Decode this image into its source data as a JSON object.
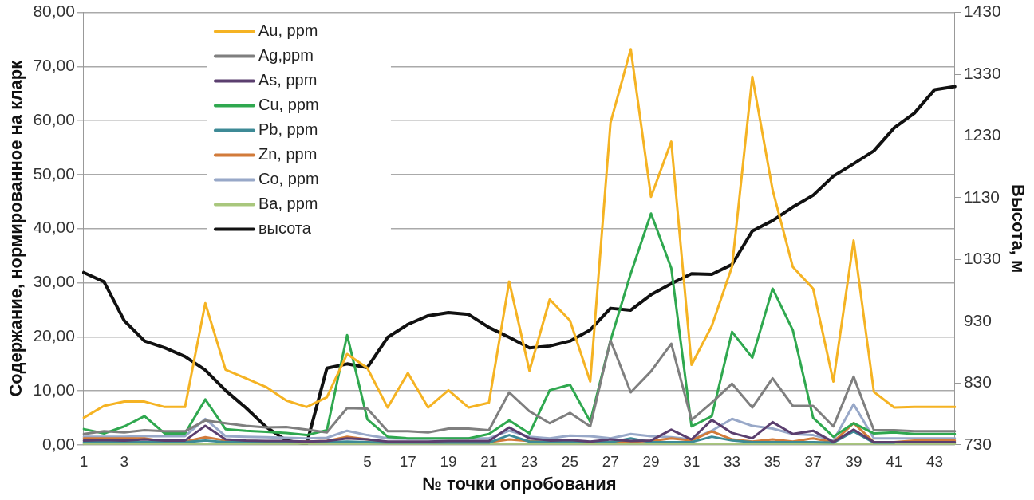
{
  "chart_data": {
    "type": "line",
    "xlabel": "№ точки опробования",
    "ylabel": "Содержание, нормированное на кларк",
    "y2label": "Высота, м",
    "categories": [
      "1",
      null,
      "3",
      null,
      null,
      null,
      null,
      null,
      null,
      null,
      null,
      null,
      null,
      null,
      "5",
      null,
      "17",
      null,
      "19",
      null,
      "21",
      null,
      "23",
      null,
      "25",
      null,
      "27",
      null,
      "29",
      null,
      "31",
      null,
      "33",
      null,
      "35",
      null,
      "37",
      null,
      "39",
      null,
      "41",
      null,
      "43",
      null
    ],
    "ylim": [
      0,
      80
    ],
    "yticks": [
      {
        "value": 0,
        "label": "0,00"
      },
      {
        "value": 10,
        "label": "10,00"
      },
      {
        "value": 20,
        "label": "20,00"
      },
      {
        "value": 30,
        "label": "30,00"
      },
      {
        "value": 40,
        "label": "40,00"
      },
      {
        "value": 50,
        "label": "50,00"
      },
      {
        "value": 60,
        "label": "60,00"
      },
      {
        "value": 70,
        "label": "70,00"
      },
      {
        "value": 80,
        "label": "80,00"
      }
    ],
    "y2lim": [
      730,
      1430
    ],
    "y2ticks": [
      730,
      830,
      930,
      1030,
      1130,
      1230,
      1330,
      1430
    ],
    "grid": "y",
    "legend": "top left",
    "marker": "none",
    "line_style": "solid",
    "series": [
      {
        "name": "Au, ppm",
        "color": "#f5b323",
        "values": [
          5,
          7.2,
          8,
          8,
          7,
          7,
          26.2,
          13.9,
          12.3,
          10.7,
          8.2,
          7,
          8.8,
          16.8,
          14.2,
          6.9,
          13.3,
          6.9,
          10.1,
          6.9,
          7.8,
          30.2,
          13.7,
          26.9,
          23,
          11.7,
          59.6,
          73.2,
          45.9,
          56.1,
          14.8,
          22,
          33,
          68.1,
          47.2,
          32.9,
          28.9,
          11.7,
          37.8,
          9.8,
          6.9,
          7,
          7,
          7
        ]
      },
      {
        "name": "Ag,ppm",
        "color": "#7f7f7f",
        "values": [
          2,
          2.5,
          2.3,
          2.7,
          2.5,
          2.5,
          4.5,
          4,
          3.5,
          3.2,
          3.3,
          2.8,
          2.3,
          6.8,
          6.7,
          2.5,
          2.5,
          2.3,
          3,
          3,
          2.7,
          9.7,
          6.2,
          4,
          5.9,
          3.4,
          19.3,
          9.7,
          13.6,
          18.7,
          4.6,
          7.8,
          11.3,
          6.9,
          12.3,
          7.2,
          7.2,
          3.4,
          12.6,
          2.7,
          2.7,
          2.5,
          2.5,
          2.5
        ]
      },
      {
        "name": "As, ppm",
        "color": "#5b3f6f",
        "values": [
          0.8,
          0.9,
          0.8,
          1,
          0.8,
          0.8,
          3.5,
          1,
          0.8,
          0.7,
          0.7,
          0.6,
          0.7,
          1.2,
          1,
          0.6,
          0.6,
          0.6,
          0.7,
          0.7,
          0.7,
          3.2,
          1.2,
          0.8,
          0.9,
          0.6,
          1,
          0.7,
          0.8,
          2.8,
          1,
          4.6,
          2.2,
          1.2,
          4.2,
          2,
          2.6,
          0.5,
          2.8,
          0.5,
          0.5,
          0.5,
          0.5,
          0.5
        ]
      },
      {
        "name": "Cu, ppm",
        "color": "#2fa84f",
        "values": [
          2.9,
          2.1,
          3.4,
          5.3,
          2.1,
          2.1,
          8.4,
          2.9,
          2.6,
          2.4,
          2.2,
          1.8,
          2.7,
          20.3,
          4.7,
          1.5,
          1.2,
          1.2,
          1.2,
          1.2,
          2,
          4.5,
          2.1,
          10.1,
          11.1,
          4.3,
          19.3,
          31.7,
          42.8,
          32.7,
          3.4,
          5.3,
          20.9,
          16.1,
          28.9,
          21.2,
          5,
          1.5,
          4,
          2.1,
          2.3,
          2,
          2,
          2
        ]
      },
      {
        "name": "Pb, ppm",
        "color": "#3d8a96",
        "values": [
          0.5,
          0.5,
          0.5,
          0.5,
          0.5,
          0.5,
          0.8,
          0.5,
          0.5,
          0.5,
          0.5,
          0.5,
          0.5,
          0.6,
          0.5,
          0.4,
          0.4,
          0.4,
          0.4,
          0.4,
          0.4,
          1.8,
          0.6,
          0.5,
          0.5,
          0.5,
          0.5,
          1.2,
          0.5,
          0.5,
          0.5,
          1.5,
          0.8,
          0.5,
          0.5,
          0.5,
          0.5,
          0.4,
          2.5,
          0.4,
          0.4,
          null,
          null,
          null
        ]
      },
      {
        "name": "Zn, ppm",
        "color": "#d27b3a",
        "values": [
          1.2,
          1.2,
          1.2,
          1.2,
          0.6,
          0.6,
          1.4,
          0.8,
          0.7,
          0.6,
          0.6,
          0.6,
          0.7,
          1.5,
          1,
          0.5,
          0.5,
          0.5,
          0.5,
          0.5,
          0.5,
          1,
          0.7,
          0.5,
          0.5,
          0.5,
          0.5,
          0.6,
          0.7,
          1.2,
          0.8,
          2.5,
          1,
          0.6,
          1,
          0.6,
          1.2,
          0.5,
          4,
          0.5,
          0.5,
          0.8,
          0.8,
          0.8
        ]
      },
      {
        "name": "Co, ppm",
        "color": "#98a8c8",
        "values": [
          1.5,
          1.5,
          1.5,
          1.6,
          1.6,
          1.6,
          4.8,
          1.6,
          1.5,
          1.4,
          1.3,
          1.2,
          1.3,
          2.6,
          1.8,
          1.2,
          1.1,
          1.1,
          1.2,
          1.2,
          1.2,
          2.6,
          1.5,
          1.2,
          1.7,
          1.6,
          1.2,
          2,
          1.6,
          1.4,
          1,
          2.6,
          4.8,
          3.5,
          3,
          2,
          1.8,
          0.8,
          7.5,
          1.2,
          1.2,
          1.2,
          1.2,
          1.2
        ]
      },
      {
        "name": "Ba, ppm",
        "color": "#a9c77d",
        "values": [
          0.2,
          0.2,
          0.2,
          0.2,
          0.2,
          0.2,
          0.2,
          0.2,
          0.2,
          0.2,
          0.2,
          0.2,
          0.2,
          0.2,
          0.2,
          0.2,
          0.2,
          0.2,
          0.2,
          0.2,
          0.2,
          0.2,
          0.2,
          0.2,
          0.2,
          0.2,
          0.2,
          0.2,
          0.2,
          0.2,
          0.2,
          0.2,
          0.2,
          0.2,
          0.2,
          0.2,
          0.2,
          0.2,
          0.2,
          0.2,
          0.2,
          0.2,
          0.2,
          0.2
        ]
      },
      {
        "name": "высота",
        "color": "#111111",
        "axis": "y2",
        "values": [
          1009,
          994,
          931,
          898,
          887,
          873,
          851,
          818,
          790,
          759,
          737,
          731,
          854,
          861,
          855,
          904,
          925,
          939,
          944,
          941,
          920,
          904,
          887,
          890,
          898,
          916,
          951,
          948,
          973,
          991,
          1007,
          1006,
          1022,
          1076,
          1093,
          1115,
          1134,
          1165,
          1185,
          1206,
          1243,
          1267,
          1305,
          1310
        ]
      }
    ]
  }
}
